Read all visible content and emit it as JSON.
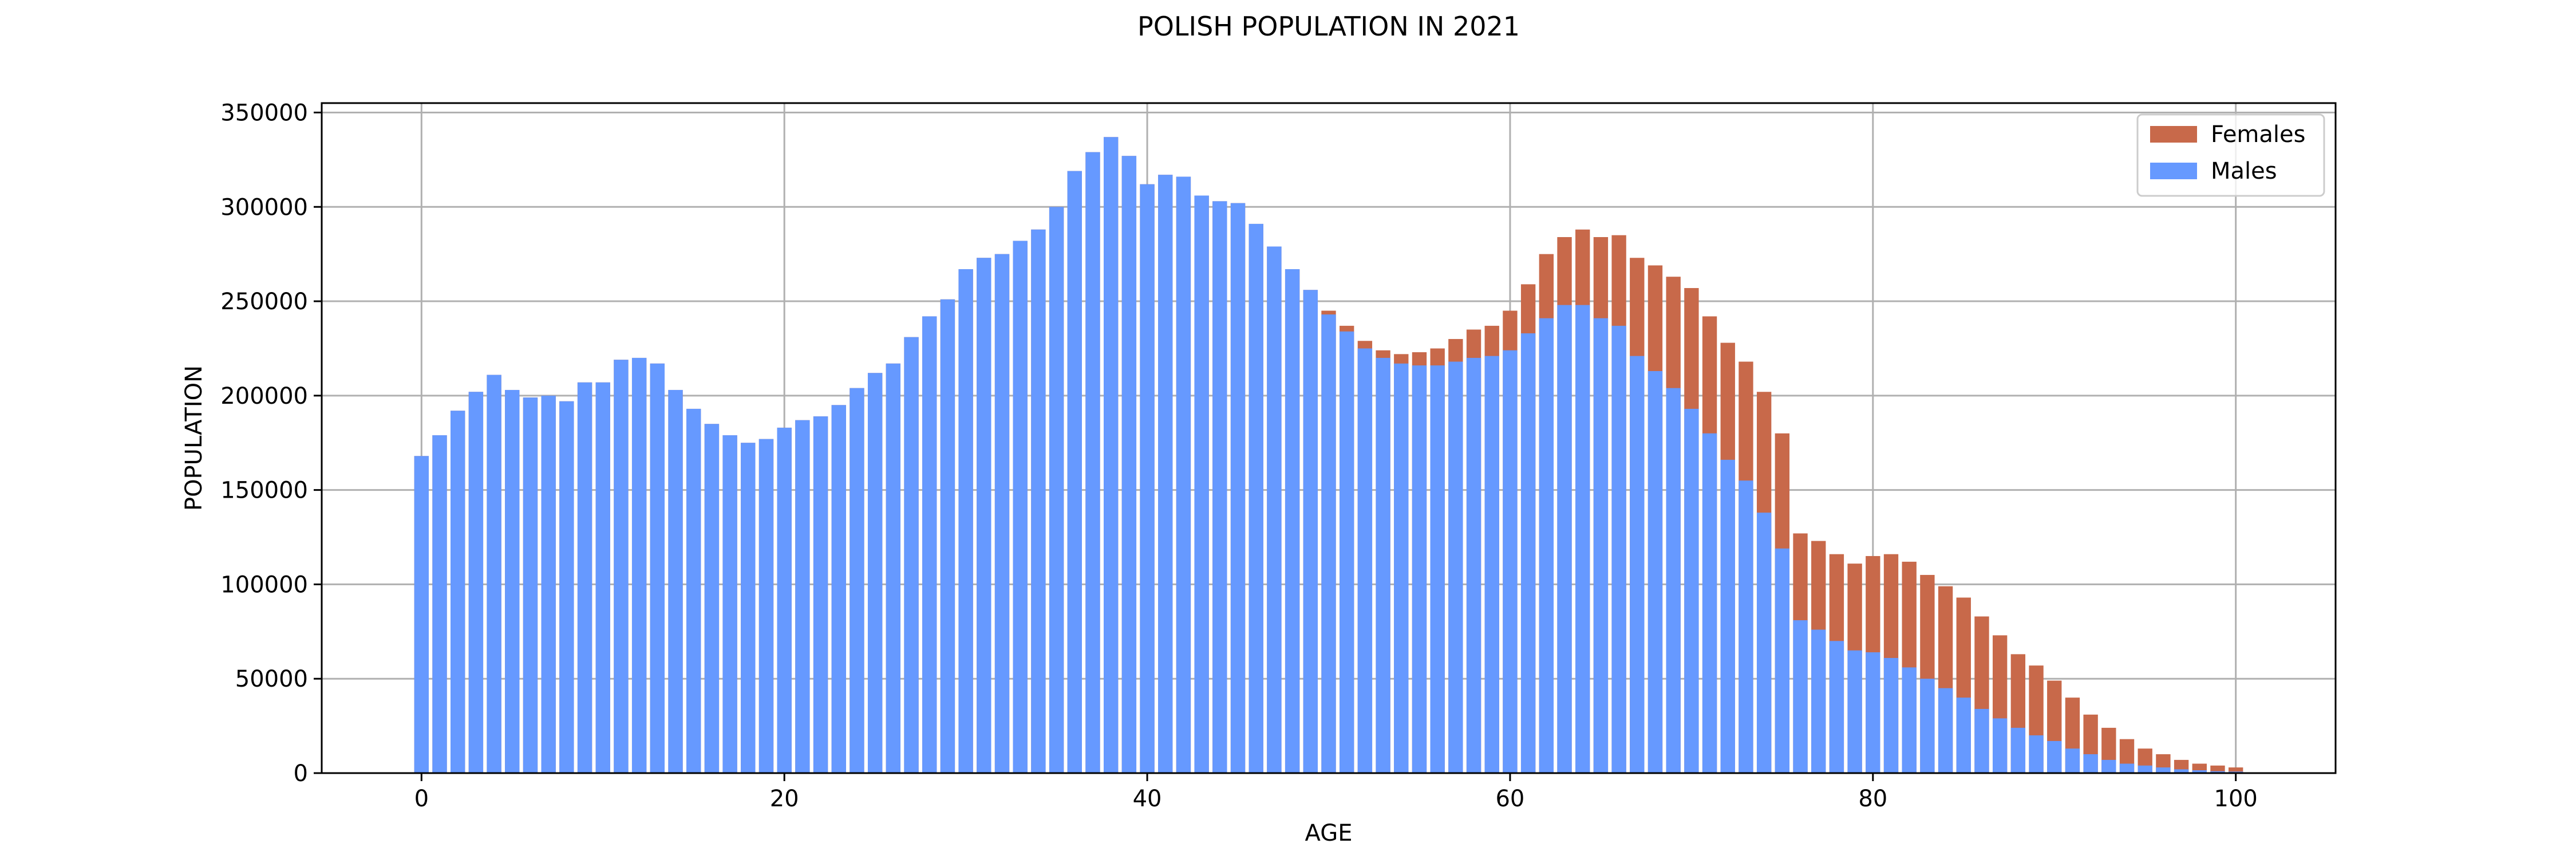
{
  "chart_data": {
    "type": "bar",
    "title": "POLISH POPULATION IN 2021",
    "xlabel": "AGE",
    "ylabel": "POPULATION",
    "xlim": [
      -5.5,
      105.5
    ],
    "ylim": [
      0,
      355000
    ],
    "xticks": [
      "0",
      "20",
      "40",
      "60",
      "80",
      "100"
    ],
    "yticks": [
      "0",
      "50000",
      "100000",
      "150000",
      "200000",
      "250000",
      "300000",
      "350000"
    ],
    "grid": true,
    "legend_position": "top-right",
    "stacked_overlay": true,
    "x": [
      0,
      1,
      2,
      3,
      4,
      5,
      6,
      7,
      8,
      9,
      10,
      11,
      12,
      13,
      14,
      15,
      16,
      17,
      18,
      19,
      20,
      21,
      22,
      23,
      24,
      25,
      26,
      27,
      28,
      29,
      30,
      31,
      32,
      33,
      34,
      35,
      36,
      37,
      38,
      39,
      40,
      41,
      42,
      43,
      44,
      45,
      46,
      47,
      48,
      49,
      50,
      51,
      52,
      53,
      54,
      55,
      56,
      57,
      58,
      59,
      60,
      61,
      62,
      63,
      64,
      65,
      66,
      67,
      68,
      69,
      70,
      71,
      72,
      73,
      74,
      75,
      76,
      77,
      78,
      79,
      80,
      81,
      82,
      83,
      84,
      85,
      86,
      87,
      88,
      89,
      90,
      91,
      92,
      93,
      94,
      95,
      96,
      97,
      98,
      99,
      100
    ],
    "series": [
      {
        "name": "Females",
        "color": "#c8694a",
        "values": [
          168000,
          179000,
          192000,
          202000,
          211000,
          203000,
          199000,
          200000,
          197000,
          207000,
          207000,
          219000,
          220000,
          217000,
          203000,
          193000,
          185000,
          179000,
          175000,
          177000,
          183000,
          187000,
          189000,
          195000,
          204000,
          212000,
          217000,
          231000,
          242000,
          251000,
          267000,
          273000,
          275000,
          282000,
          288000,
          300000,
          319000,
          329000,
          337000,
          327000,
          312000,
          317000,
          316000,
          306000,
          303000,
          302000,
          291000,
          279000,
          267000,
          256000,
          245000,
          237000,
          229000,
          224000,
          222000,
          223000,
          225000,
          230000,
          235000,
          237000,
          245000,
          259000,
          275000,
          284000,
          288000,
          284000,
          285000,
          273000,
          269000,
          263000,
          257000,
          242000,
          228000,
          218000,
          202000,
          180000,
          127000,
          123000,
          116000,
          111000,
          115000,
          116000,
          112000,
          105000,
          99000,
          93000,
          83000,
          73000,
          63000,
          57000,
          49000,
          40000,
          31000,
          24000,
          18000,
          13000,
          10000,
          7000,
          5000,
          4000,
          3000
        ]
      },
      {
        "name": "Males",
        "color": "#6699ff",
        "values": [
          168000,
          179000,
          192000,
          202000,
          211000,
          203000,
          199000,
          200000,
          197000,
          207000,
          207000,
          219000,
          220000,
          217000,
          203000,
          193000,
          185000,
          179000,
          175000,
          177000,
          183000,
          187000,
          189000,
          195000,
          204000,
          212000,
          217000,
          231000,
          242000,
          251000,
          267000,
          273000,
          275000,
          282000,
          288000,
          300000,
          319000,
          329000,
          337000,
          327000,
          312000,
          317000,
          316000,
          306000,
          303000,
          302000,
          291000,
          279000,
          267000,
          256000,
          243000,
          234000,
          225000,
          220000,
          217000,
          216000,
          216000,
          218000,
          220000,
          221000,
          224000,
          233000,
          241000,
          248000,
          248000,
          241000,
          237000,
          221000,
          213000,
          204000,
          193000,
          180000,
          166000,
          155000,
          138000,
          119000,
          81000,
          76000,
          70000,
          65000,
          64000,
          61000,
          56000,
          50000,
          45000,
          40000,
          34000,
          29000,
          24000,
          20000,
          17000,
          13000,
          10000,
          7000,
          5000,
          4000,
          3000,
          2000,
          1500,
          1000,
          800
        ]
      }
    ]
  }
}
